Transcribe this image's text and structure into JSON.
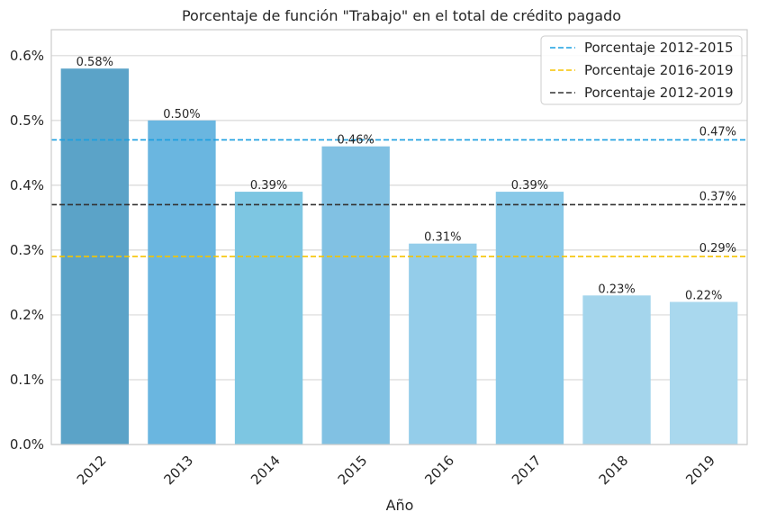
{
  "chart_data": {
    "type": "bar",
    "title": "Porcentaje de función \"Trabajo\" en el total de crédito pagado",
    "xlabel": "Año",
    "ylabel": "",
    "categories": [
      "2012",
      "2013",
      "2014",
      "2015",
      "2016",
      "2017",
      "2018",
      "2019"
    ],
    "values": [
      0.58,
      0.5,
      0.39,
      0.46,
      0.31,
      0.39,
      0.23,
      0.22
    ],
    "value_labels": [
      "0.58%",
      "0.50%",
      "0.39%",
      "0.46%",
      "0.31%",
      "0.39%",
      "0.23%",
      "0.22%"
    ],
    "bar_colors": [
      "#5ba3c8",
      "#6ab6e0",
      "#7dc6e2",
      "#81c1e3",
      "#94cdea",
      "#89c9e8",
      "#a4d5ec",
      "#a9d8ee"
    ],
    "ylim": [
      0,
      0.64
    ],
    "yticks": [
      0.0,
      0.1,
      0.2,
      0.3,
      0.4,
      0.5,
      0.6
    ],
    "ytick_labels": [
      "0.0%",
      "0.1%",
      "0.2%",
      "0.3%",
      "0.4%",
      "0.5%",
      "0.6%"
    ],
    "reference_lines": [
      {
        "name": "Porcentaje 2012-2015",
        "value": 0.47,
        "label": "0.47%",
        "color": "#1a9fe0"
      },
      {
        "name": "Porcentaje 2016-2019",
        "value": 0.29,
        "label": "0.29%",
        "color": "#f5c400"
      },
      {
        "name": "Porcentaje 2012-2019",
        "value": 0.37,
        "label": "0.37%",
        "color": "#333333"
      }
    ],
    "grid": "y",
    "legend_position": "top-right"
  }
}
